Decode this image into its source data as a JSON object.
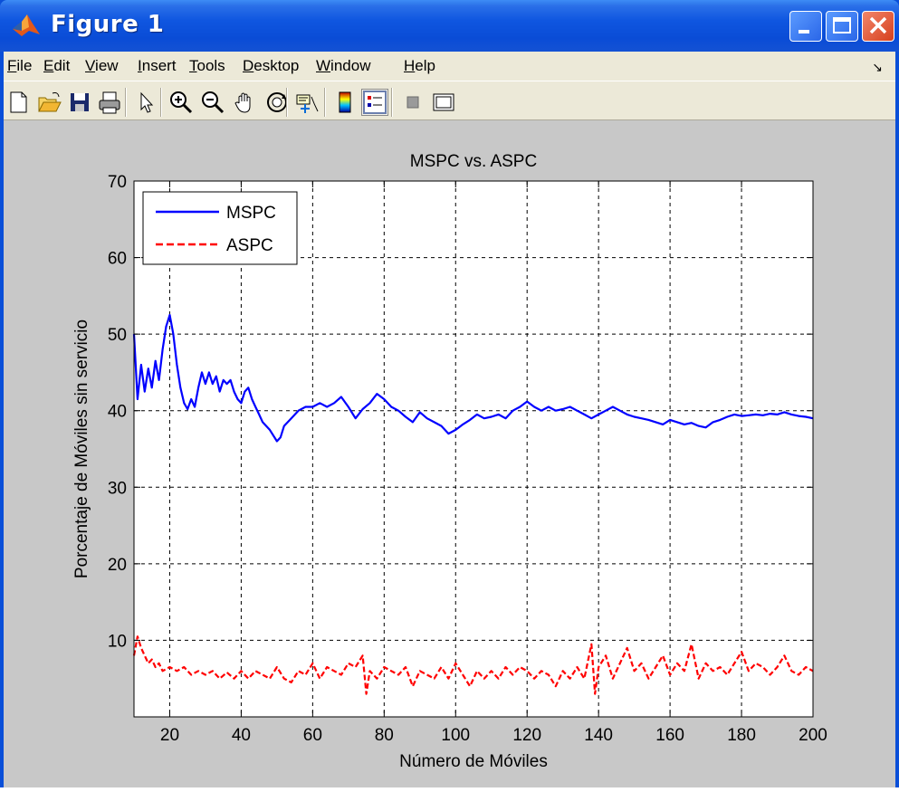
{
  "window": {
    "title": "Figure 1"
  },
  "menu": [
    {
      "label": "File",
      "u": "F"
    },
    {
      "label": "Edit",
      "u": "E"
    },
    {
      "label": "View",
      "u": "V"
    },
    {
      "label": "Insert",
      "u": "I"
    },
    {
      "label": "Tools",
      "u": "T"
    },
    {
      "label": "Desktop",
      "u": "D"
    },
    {
      "label": "Window",
      "u": "W"
    },
    {
      "label": "Help",
      "u": "H"
    }
  ],
  "toolbar_icons": [
    "new-figure-icon",
    "open-file-icon",
    "save-icon",
    "print-icon",
    "edit-plot-arrow-icon",
    "zoom-in-icon",
    "zoom-out-icon",
    "pan-hand-icon",
    "rotate-3d-icon",
    "data-cursor-icon",
    "colorbar-icon",
    "legend-icon",
    "hide-plot-tools-icon",
    "show-plot-tools-icon"
  ],
  "chart_data": {
    "type": "line",
    "title": "MSPC vs. ASPC",
    "xlabel": "Número de Móviles",
    "ylabel": "Porcentaje de Móviles sin servicio",
    "xlim": [
      10,
      200
    ],
    "ylim": [
      0,
      70
    ],
    "xticks": [
      20,
      40,
      60,
      80,
      100,
      120,
      140,
      160,
      180,
      200
    ],
    "yticks": [
      10,
      20,
      30,
      40,
      50,
      60,
      70
    ],
    "grid": true,
    "legend_position": "top-left",
    "series": [
      {
        "name": "MSPC",
        "color": "#0000ff",
        "style": "solid",
        "points": [
          [
            10,
            50
          ],
          [
            11,
            41.5
          ],
          [
            12,
            46
          ],
          [
            13,
            42.5
          ],
          [
            14,
            45.5
          ],
          [
            15,
            43
          ],
          [
            16,
            46.5
          ],
          [
            17,
            44
          ],
          [
            18,
            48
          ],
          [
            19,
            51
          ],
          [
            20,
            52.5
          ],
          [
            21,
            50
          ],
          [
            22,
            46
          ],
          [
            23,
            43
          ],
          [
            24,
            41
          ],
          [
            25,
            40.2
          ],
          [
            26,
            41.5
          ],
          [
            27,
            40.5
          ],
          [
            28,
            43
          ],
          [
            29,
            45
          ],
          [
            30,
            43.5
          ],
          [
            31,
            45
          ],
          [
            32,
            43.5
          ],
          [
            33,
            44.5
          ],
          [
            34,
            42.5
          ],
          [
            35,
            44
          ],
          [
            36,
            43.5
          ],
          [
            37,
            44
          ],
          [
            38,
            42.5
          ],
          [
            39,
            41.5
          ],
          [
            40,
            41
          ],
          [
            41,
            42.5
          ],
          [
            42,
            43
          ],
          [
            43,
            41.5
          ],
          [
            44,
            40.5
          ],
          [
            45,
            39.5
          ],
          [
            46,
            38.5
          ],
          [
            48,
            37.5
          ],
          [
            50,
            36
          ],
          [
            51,
            36.5
          ],
          [
            52,
            38
          ],
          [
            54,
            39
          ],
          [
            56,
            40
          ],
          [
            58,
            40.5
          ],
          [
            60,
            40.5
          ],
          [
            62,
            41
          ],
          [
            64,
            40.5
          ],
          [
            66,
            41
          ],
          [
            68,
            41.8
          ],
          [
            70,
            40.5
          ],
          [
            72,
            39
          ],
          [
            74,
            40.2
          ],
          [
            76,
            41
          ],
          [
            78,
            42.2
          ],
          [
            80,
            41.5
          ],
          [
            82,
            40.5
          ],
          [
            84,
            40
          ],
          [
            86,
            39.2
          ],
          [
            88,
            38.5
          ],
          [
            90,
            39.8
          ],
          [
            92,
            39
          ],
          [
            94,
            38.5
          ],
          [
            96,
            38
          ],
          [
            98,
            37
          ],
          [
            100,
            37.5
          ],
          [
            102,
            38.2
          ],
          [
            104,
            38.8
          ],
          [
            106,
            39.5
          ],
          [
            108,
            39
          ],
          [
            110,
            39.2
          ],
          [
            112,
            39.5
          ],
          [
            114,
            39
          ],
          [
            116,
            40
          ],
          [
            118,
            40.5
          ],
          [
            120,
            41.2
          ],
          [
            122,
            40.5
          ],
          [
            124,
            40
          ],
          [
            126,
            40.5
          ],
          [
            128,
            40
          ],
          [
            130,
            40.2
          ],
          [
            132,
            40.5
          ],
          [
            134,
            40
          ],
          [
            136,
            39.5
          ],
          [
            138,
            39
          ],
          [
            140,
            39.5
          ],
          [
            142,
            40
          ],
          [
            144,
            40.5
          ],
          [
            146,
            40
          ],
          [
            148,
            39.5
          ],
          [
            150,
            39.2
          ],
          [
            152,
            39
          ],
          [
            154,
            38.8
          ],
          [
            156,
            38.5
          ],
          [
            158,
            38.2
          ],
          [
            160,
            38.8
          ],
          [
            162,
            38.5
          ],
          [
            164,
            38.2
          ],
          [
            166,
            38.4
          ],
          [
            168,
            38
          ],
          [
            170,
            37.8
          ],
          [
            172,
            38.5
          ],
          [
            174,
            38.8
          ],
          [
            176,
            39.2
          ],
          [
            178,
            39.5
          ],
          [
            180,
            39.3
          ],
          [
            182,
            39.4
          ],
          [
            184,
            39.5
          ],
          [
            186,
            39.4
          ],
          [
            188,
            39.6
          ],
          [
            190,
            39.5
          ],
          [
            192,
            39.8
          ],
          [
            194,
            39.5
          ],
          [
            196,
            39.3
          ],
          [
            198,
            39.2
          ],
          [
            200,
            39
          ]
        ]
      },
      {
        "name": "ASPC",
        "color": "#ff0000",
        "style": "dashed",
        "points": [
          [
            10,
            8
          ],
          [
            11,
            10.5
          ],
          [
            12,
            9
          ],
          [
            13,
            8
          ],
          [
            14,
            7
          ],
          [
            15,
            7.5
          ],
          [
            16,
            6.5
          ],
          [
            17,
            7
          ],
          [
            18,
            6
          ],
          [
            20,
            6.5
          ],
          [
            22,
            6
          ],
          [
            24,
            6.5
          ],
          [
            26,
            5.5
          ],
          [
            28,
            6
          ],
          [
            30,
            5.5
          ],
          [
            32,
            6
          ],
          [
            34,
            5
          ],
          [
            36,
            5.8
          ],
          [
            38,
            5
          ],
          [
            40,
            6
          ],
          [
            42,
            5
          ],
          [
            44,
            6
          ],
          [
            46,
            5.5
          ],
          [
            48,
            5
          ],
          [
            50,
            6.5
          ],
          [
            52,
            5
          ],
          [
            54,
            4.5
          ],
          [
            56,
            6
          ],
          [
            58,
            5.5
          ],
          [
            60,
            7
          ],
          [
            62,
            5
          ],
          [
            64,
            6.5
          ],
          [
            66,
            6
          ],
          [
            68,
            5.5
          ],
          [
            70,
            7
          ],
          [
            72,
            6.5
          ],
          [
            74,
            8
          ],
          [
            75,
            3
          ],
          [
            76,
            6
          ],
          [
            78,
            5
          ],
          [
            80,
            6.5
          ],
          [
            82,
            6
          ],
          [
            84,
            5.5
          ],
          [
            86,
            6.5
          ],
          [
            88,
            4
          ],
          [
            90,
            6
          ],
          [
            92,
            5.5
          ],
          [
            94,
            5
          ],
          [
            96,
            6.5
          ],
          [
            98,
            5
          ],
          [
            100,
            7
          ],
          [
            102,
            5.5
          ],
          [
            104,
            4
          ],
          [
            106,
            6
          ],
          [
            108,
            5
          ],
          [
            110,
            6
          ],
          [
            112,
            5
          ],
          [
            114,
            6.5
          ],
          [
            116,
            5.5
          ],
          [
            118,
            6.5
          ],
          [
            120,
            6
          ],
          [
            122,
            5
          ],
          [
            124,
            6
          ],
          [
            126,
            5.5
          ],
          [
            128,
            4
          ],
          [
            130,
            6
          ],
          [
            132,
            5
          ],
          [
            134,
            6.5
          ],
          [
            136,
            5
          ],
          [
            138,
            9.5
          ],
          [
            139,
            3
          ],
          [
            140,
            6.5
          ],
          [
            142,
            8
          ],
          [
            144,
            5
          ],
          [
            146,
            7
          ],
          [
            148,
            9
          ],
          [
            150,
            6
          ],
          [
            152,
            7
          ],
          [
            154,
            5
          ],
          [
            156,
            6.5
          ],
          [
            158,
            8
          ],
          [
            160,
            5.5
          ],
          [
            162,
            7
          ],
          [
            164,
            6
          ],
          [
            166,
            9.5
          ],
          [
            168,
            5
          ],
          [
            170,
            7
          ],
          [
            172,
            6
          ],
          [
            174,
            6.5
          ],
          [
            176,
            5.5
          ],
          [
            178,
            7
          ],
          [
            180,
            8.5
          ],
          [
            182,
            6
          ],
          [
            184,
            7
          ],
          [
            186,
            6.5
          ],
          [
            188,
            5.5
          ],
          [
            190,
            6.5
          ],
          [
            192,
            8
          ],
          [
            194,
            6
          ],
          [
            196,
            5.5
          ],
          [
            198,
            6.5
          ],
          [
            200,
            6
          ]
        ]
      }
    ]
  }
}
